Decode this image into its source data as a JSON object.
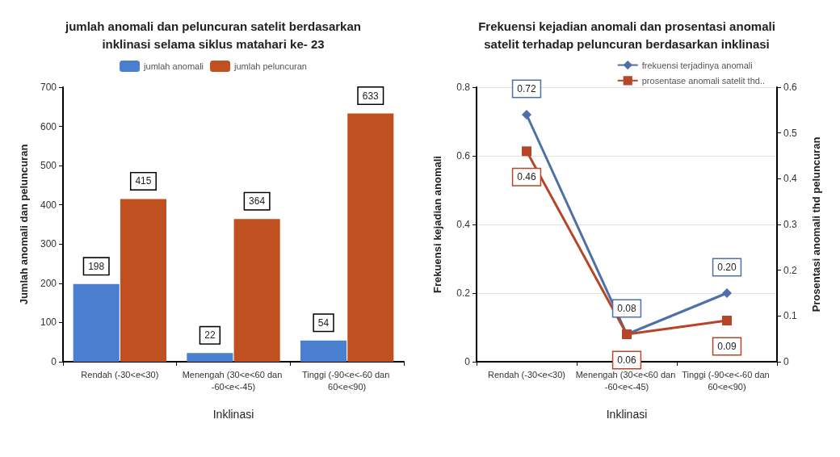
{
  "chart_data": [
    {
      "type": "bar",
      "title": "jumlah anomali dan peluncuran satelit berdasarkan\ninklinasi selama siklus matahari ke- 23",
      "xlabel": "Inklinasi",
      "ylabel": "Jumlah anomali dan peluncuran",
      "categories": [
        "Rendah (-30<e<30)",
        "Menengah (30<e<60 dan -60<e<-45)",
        "Tinggi (-90<e<-60 dan 60<e<90)"
      ],
      "series": [
        {
          "name": "jumlah anomali",
          "color": "#4a7fd0",
          "values": [
            198,
            22,
            54
          ]
        },
        {
          "name": "jumlah peluncuran",
          "color": "#c0501f",
          "values": [
            415,
            364,
            633
          ]
        }
      ],
      "ylim": [
        0,
        700
      ],
      "yticks": [
        0,
        100,
        200,
        300,
        400,
        500,
        600,
        700
      ],
      "data_labels": true,
      "legend": "top"
    },
    {
      "type": "line",
      "title": "Frekuensi kejadian anomali dan prosentasi anomali\nsatelit terhadap peluncuran berdasarkan inklinasi",
      "xlabel": "Inklinasi",
      "ylabel": "Frekuensi kejadian anomali",
      "y2label": "Prosentasi anomali thd peluncuran",
      "categories": [
        "Rendah (-30<e<30)",
        "Menengah (30<e<60 dan -60<e<-45)",
        "Tinggi (-90<e<-60 dan 60<e<90)"
      ],
      "series": [
        {
          "name": "frekuensi terjadinya anomali",
          "color": "#4f6fa8",
          "values": [
            0.72,
            0.08,
            0.2
          ],
          "value_labels": [
            "0.72",
            "0.08",
            "0.20"
          ],
          "marker": "diamond"
        },
        {
          "name": "prosentase anomali satelit thd..",
          "color": "#b5462a",
          "values": [
            0.46,
            0.06,
            0.09
          ],
          "value_labels": [
            "0.46",
            "0.06",
            "0.09"
          ],
          "marker": "square",
          "axis": "y2"
        }
      ],
      "ylim": [
        0,
        0.8
      ],
      "yticks": [
        0,
        0.2,
        0.4,
        0.6,
        0.8
      ],
      "y2lim": [
        0,
        0.6
      ],
      "y2ticks": [
        0,
        0.1,
        0.2,
        0.3,
        0.4,
        0.5,
        0.6
      ],
      "grid": "y",
      "legend": "top right"
    }
  ]
}
